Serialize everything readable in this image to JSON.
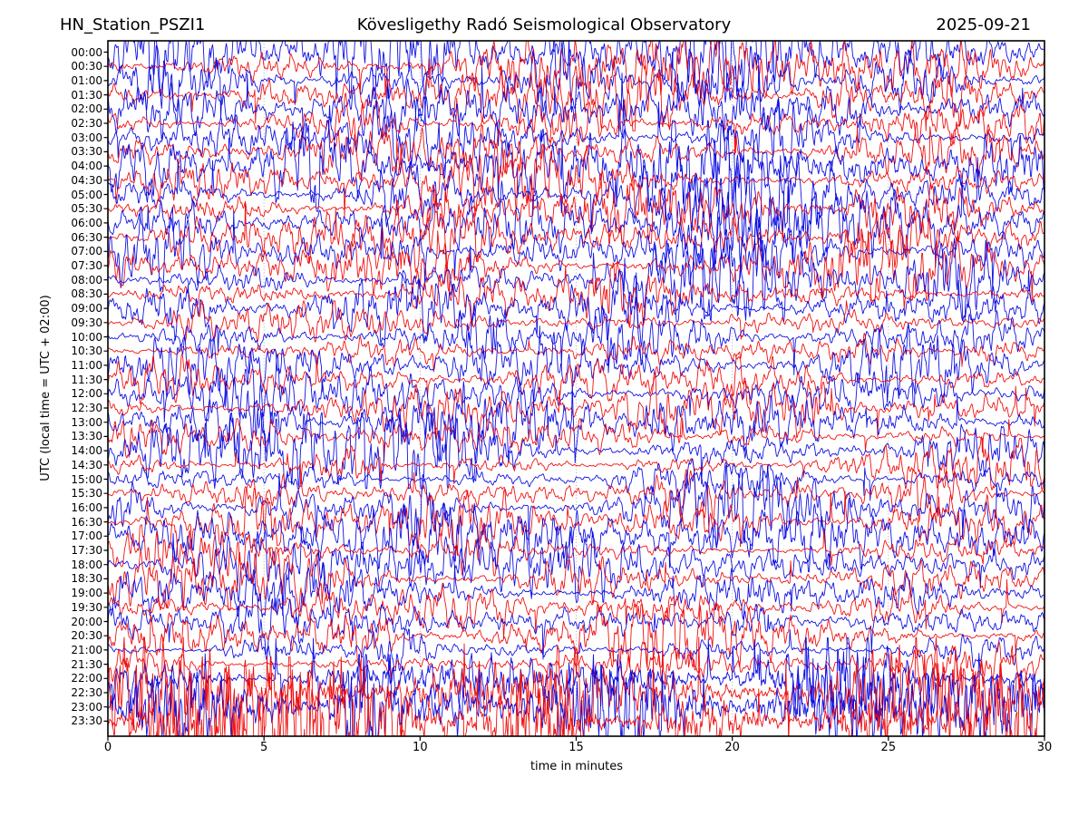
{
  "figure": {
    "title_left": "HN_Station_PSZI1",
    "title_center": "Kövesligethy Radó Seismological Observatory",
    "title_right": "2025-09-21"
  },
  "axes": {
    "xlabel": "time in minutes",
    "ylabel": "UTC (local time = UTC + 02:00)",
    "xticks": [
      "0",
      "5",
      "10",
      "15",
      "20",
      "25",
      "30"
    ]
  },
  "chart_data": {
    "type": "line",
    "subtype": "helicorder-dayplot",
    "station": "HN_Station_PSZI1",
    "date": "2025-09-21",
    "title": "Kövesligethy Radó Seismological Observatory",
    "xlabel": "time in minutes",
    "ylabel": "UTC (local time = UTC + 02:00)",
    "xlim_minutes": [
      0,
      30
    ],
    "xtick_minutes": [
      0,
      5,
      10,
      15,
      20,
      25,
      30
    ],
    "minutes_per_line": 30,
    "rows_count": 48,
    "grid": {
      "style": "dotted",
      "color": "#999999",
      "positions_minutes": [
        5,
        10,
        15,
        20,
        25
      ]
    },
    "background_color": "#ffffff",
    "frame_color": "#000000",
    "trace_color_palette": {
      "b": "#0000e0",
      "r": "#ee0000"
    },
    "rows": [
      {
        "time": "00:00",
        "color": "b",
        "amplitude": 0.7
      },
      {
        "time": "00:30",
        "color": "r",
        "amplitude": 0.58
      },
      {
        "time": "01:00",
        "color": "b",
        "amplitude": 0.66
      },
      {
        "time": "01:30",
        "color": "r",
        "amplitude": 0.52
      },
      {
        "time": "02:00",
        "color": "b",
        "amplitude": 0.62
      },
      {
        "time": "02:30",
        "color": "r",
        "amplitude": 0.5
      },
      {
        "time": "03:00",
        "color": "b",
        "amplitude": 0.6
      },
      {
        "time": "03:30",
        "color": "r",
        "amplitude": 0.58
      },
      {
        "time": "04:00",
        "color": "b",
        "amplitude": 0.68
      },
      {
        "time": "04:30",
        "color": "r",
        "amplitude": 0.52
      },
      {
        "time": "05:00",
        "color": "b",
        "amplitude": 0.62
      },
      {
        "time": "05:30",
        "color": "r",
        "amplitude": 0.5
      },
      {
        "time": "06:00",
        "color": "b",
        "amplitude": 0.66
      },
      {
        "time": "06:30",
        "color": "r",
        "amplitude": 0.56
      },
      {
        "time": "07:00",
        "color": "b",
        "amplitude": 0.7
      },
      {
        "time": "07:30",
        "color": "r",
        "amplitude": 0.5
      },
      {
        "time": "08:00",
        "color": "b",
        "amplitude": 0.62
      },
      {
        "time": "08:30",
        "color": "r",
        "amplitude": 0.46
      },
      {
        "time": "09:00",
        "color": "b",
        "amplitude": 0.55
      },
      {
        "time": "09:30",
        "color": "r",
        "amplitude": 0.28
      },
      {
        "time": "10:00",
        "color": "b",
        "amplitude": 0.58
      },
      {
        "time": "10:30",
        "color": "r",
        "amplitude": 0.26
      },
      {
        "time": "11:00",
        "color": "b",
        "amplitude": 0.62
      },
      {
        "time": "11:30",
        "color": "r",
        "amplitude": 0.44
      },
      {
        "time": "12:00",
        "color": "b",
        "amplitude": 0.62
      },
      {
        "time": "12:30",
        "color": "r",
        "amplitude": 0.5
      },
      {
        "time": "13:00",
        "color": "b",
        "amplitude": 0.6
      },
      {
        "time": "13:30",
        "color": "r",
        "amplitude": 0.38
      },
      {
        "time": "14:00",
        "color": "b",
        "amplitude": 0.55
      },
      {
        "time": "14:30",
        "color": "r",
        "amplitude": 0.36
      },
      {
        "time": "15:00",
        "color": "b",
        "amplitude": 0.3
      },
      {
        "time": "15:30",
        "color": "r",
        "amplitude": 0.44
      },
      {
        "time": "16:00",
        "color": "b",
        "amplitude": 0.62
      },
      {
        "time": "16:30",
        "color": "r",
        "amplitude": 0.48
      },
      {
        "time": "17:00",
        "color": "b",
        "amplitude": 0.58
      },
      {
        "time": "17:30",
        "color": "r",
        "amplitude": 0.34
      },
      {
        "time": "18:00",
        "color": "b",
        "amplitude": 0.55
      },
      {
        "time": "18:30",
        "color": "r",
        "amplitude": 0.44
      },
      {
        "time": "19:00",
        "color": "b",
        "amplitude": 0.5
      },
      {
        "time": "19:30",
        "color": "r",
        "amplitude": 0.44
      },
      {
        "time": "20:00",
        "color": "b",
        "amplitude": 0.55
      },
      {
        "time": "20:30",
        "color": "r",
        "amplitude": 0.44
      },
      {
        "time": "21:00",
        "color": "b",
        "amplitude": 0.26
      },
      {
        "time": "21:30",
        "color": "r",
        "amplitude": 0.28
      },
      {
        "time": "22:00",
        "color": "b",
        "amplitude": 0.6
      },
      {
        "time": "22:30",
        "color": "r",
        "amplitude": 0.85
      },
      {
        "time": "23:00",
        "color": "b",
        "amplitude": 0.8
      },
      {
        "time": "23:30",
        "color": "r",
        "amplitude": 1.0
      }
    ]
  }
}
